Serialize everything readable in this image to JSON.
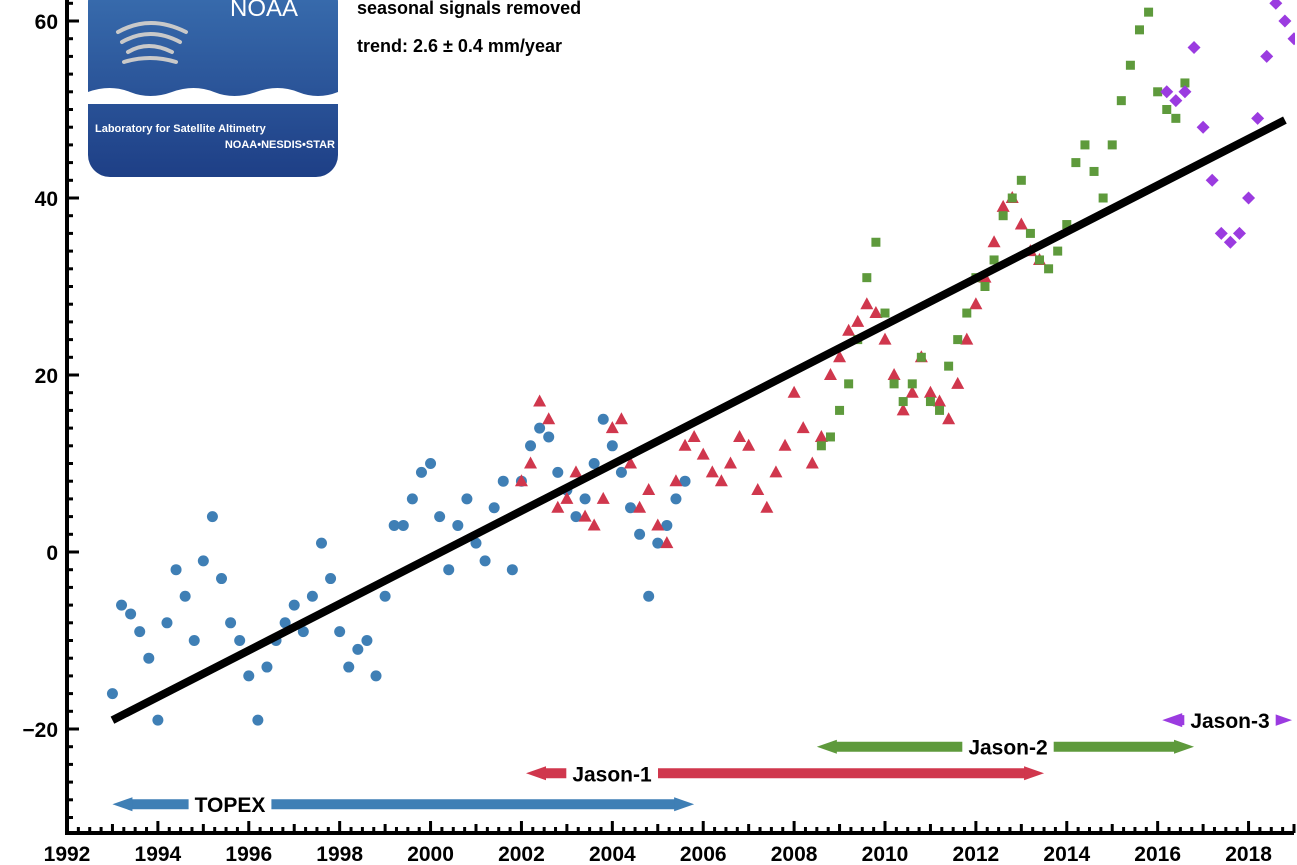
{
  "colors": {
    "topex": "#3f7fb5",
    "jason1": "#d0374d",
    "jason2": "#5e9a3c",
    "jason3": "#9b3be0",
    "trend": "#000000",
    "logo_top": "#3a6fb0",
    "logo_bottom": "#1e3f86"
  },
  "annotations": {
    "line1": "seasonal signals removed",
    "line2": "trend:  2.6 ± 0.4 mm/year"
  },
  "logo": {
    "brand": "NOAA",
    "line1": "Laboratory for Satellite Altimetry",
    "line2": "NOAA•NESDIS•STAR",
    "icon": "noaa-wave-logo"
  },
  "chart_data": {
    "type": "scatter",
    "title": "",
    "xlabel": "",
    "ylabel": "",
    "xlim": [
      1992,
      2019
    ],
    "ylim": [
      -32,
      65
    ],
    "x_ticks": [
      1992,
      1994,
      1996,
      1998,
      2000,
      2002,
      2004,
      2006,
      2008,
      2010,
      2012,
      2014,
      2016,
      2018
    ],
    "y_ticks": [
      -20,
      0,
      20,
      40,
      60
    ],
    "grid": false,
    "trend": {
      "x": [
        1993.0,
        2018.8
      ],
      "y": [
        -19.0,
        48.8
      ],
      "label": "trend:  2.6 ± 0.4 mm/year"
    },
    "missions": [
      {
        "name": "TOPEX",
        "start": 1993.0,
        "end": 2005.8,
        "y": -28.5
      },
      {
        "name": "Jason-1",
        "start": 2002.1,
        "end": 2013.5,
        "y": -25.0
      },
      {
        "name": "Jason-2",
        "start": 2008.5,
        "end": 2016.8,
        "y": -22.0
      },
      {
        "name": "Jason-3",
        "start": 2016.1,
        "end": 2019.0,
        "y": -19.0
      }
    ],
    "series": [
      {
        "name": "TOPEX",
        "marker": "circle",
        "x": [
          1993.0,
          1993.2,
          1993.4,
          1993.6,
          1993.8,
          1994.0,
          1994.2,
          1994.4,
          1994.6,
          1994.8,
          1995.0,
          1995.2,
          1995.4,
          1995.6,
          1995.8,
          1996.0,
          1996.2,
          1996.4,
          1996.6,
          1996.8,
          1997.0,
          1997.2,
          1997.4,
          1997.6,
          1997.8,
          1998.0,
          1998.2,
          1998.4,
          1998.6,
          1998.8,
          1999.0,
          1999.2,
          1999.4,
          1999.6,
          1999.8,
          2000.0,
          2000.2,
          2000.4,
          2000.6,
          2000.8,
          2001.0,
          2001.2,
          2001.4,
          2001.6,
          2001.8,
          2002.0,
          2002.2,
          2002.4,
          2002.6,
          2002.8,
          2003.0,
          2003.2,
          2003.4,
          2003.6,
          2003.8,
          2004.0,
          2004.2,
          2004.4,
          2004.6,
          2004.8,
          2005.0,
          2005.2,
          2005.4,
          2005.6
        ],
        "y": [
          -16,
          -6,
          -7,
          -9,
          -12,
          -19,
          -8,
          -2,
          -5,
          -10,
          -1,
          4,
          -3,
          -8,
          -10,
          -14,
          -19,
          -13,
          -10,
          -8,
          -6,
          -9,
          -5,
          1,
          -3,
          -9,
          -13,
          -11,
          -10,
          -14,
          -5,
          3,
          3,
          6,
          9,
          10,
          4,
          -2,
          3,
          6,
          1,
          -1,
          5,
          8,
          -2,
          8,
          12,
          14,
          13,
          9,
          7,
          4,
          6,
          10,
          15,
          12,
          9,
          5,
          2,
          -5,
          1,
          3,
          6,
          8
        ]
      },
      {
        "name": "Jason-1",
        "marker": "triangle",
        "x": [
          2002.0,
          2002.2,
          2002.4,
          2002.6,
          2002.8,
          2003.0,
          2003.2,
          2003.4,
          2003.6,
          2003.8,
          2004.0,
          2004.2,
          2004.4,
          2004.6,
          2004.8,
          2005.0,
          2005.2,
          2005.4,
          2005.6,
          2005.8,
          2006.0,
          2006.2,
          2006.4,
          2006.6,
          2006.8,
          2007.0,
          2007.2,
          2007.4,
          2007.6,
          2007.8,
          2008.0,
          2008.2,
          2008.4,
          2008.6,
          2008.8,
          2009.0,
          2009.2,
          2009.4,
          2009.6,
          2009.8,
          2010.0,
          2010.2,
          2010.4,
          2010.6,
          2010.8,
          2011.0,
          2011.2,
          2011.4,
          2011.6,
          2011.8,
          2012.0,
          2012.2,
          2012.4,
          2012.6,
          2012.8,
          2013.0,
          2013.2,
          2013.4
        ],
        "y": [
          8,
          10,
          17,
          15,
          5,
          6,
          9,
          4,
          3,
          6,
          14,
          15,
          10,
          5,
          7,
          3,
          1,
          8,
          12,
          13,
          11,
          9,
          8,
          10,
          13,
          12,
          7,
          5,
          9,
          12,
          18,
          14,
          10,
          13,
          20,
          22,
          25,
          26,
          28,
          27,
          24,
          20,
          16,
          18,
          22,
          18,
          17,
          15,
          19,
          24,
          28,
          31,
          35,
          39,
          40,
          37,
          34,
          33
        ]
      },
      {
        "name": "Jason-2",
        "marker": "square",
        "x": [
          2008.6,
          2008.8,
          2009.0,
          2009.2,
          2009.4,
          2009.6,
          2009.8,
          2010.0,
          2010.2,
          2010.4,
          2010.6,
          2010.8,
          2011.0,
          2011.2,
          2011.4,
          2011.6,
          2011.8,
          2012.0,
          2012.2,
          2012.4,
          2012.6,
          2012.8,
          2013.0,
          2013.2,
          2013.4,
          2013.6,
          2013.8,
          2014.0,
          2014.2,
          2014.4,
          2014.6,
          2014.8,
          2015.0,
          2015.2,
          2015.4,
          2015.6,
          2015.8,
          2016.0,
          2016.2,
          2016.4,
          2016.6
        ],
        "y": [
          12,
          13,
          16,
          19,
          24,
          31,
          35,
          27,
          19,
          17,
          19,
          22,
          17,
          16,
          21,
          24,
          27,
          31,
          30,
          33,
          38,
          40,
          42,
          36,
          33,
          32,
          34,
          37,
          44,
          46,
          43,
          40,
          46,
          51,
          55,
          59,
          61,
          52,
          50,
          49,
          53
        ]
      },
      {
        "name": "Jason-3",
        "marker": "diamond",
        "x": [
          2016.2,
          2016.4,
          2016.6,
          2016.8,
          2017.0,
          2017.2,
          2017.4,
          2017.6,
          2017.8,
          2018.0,
          2018.2,
          2018.4,
          2018.6,
          2018.8,
          2019.0
        ],
        "y": [
          52,
          51,
          52,
          57,
          48,
          42,
          36,
          35,
          36,
          40,
          49,
          56,
          62,
          60,
          58
        ]
      }
    ]
  }
}
